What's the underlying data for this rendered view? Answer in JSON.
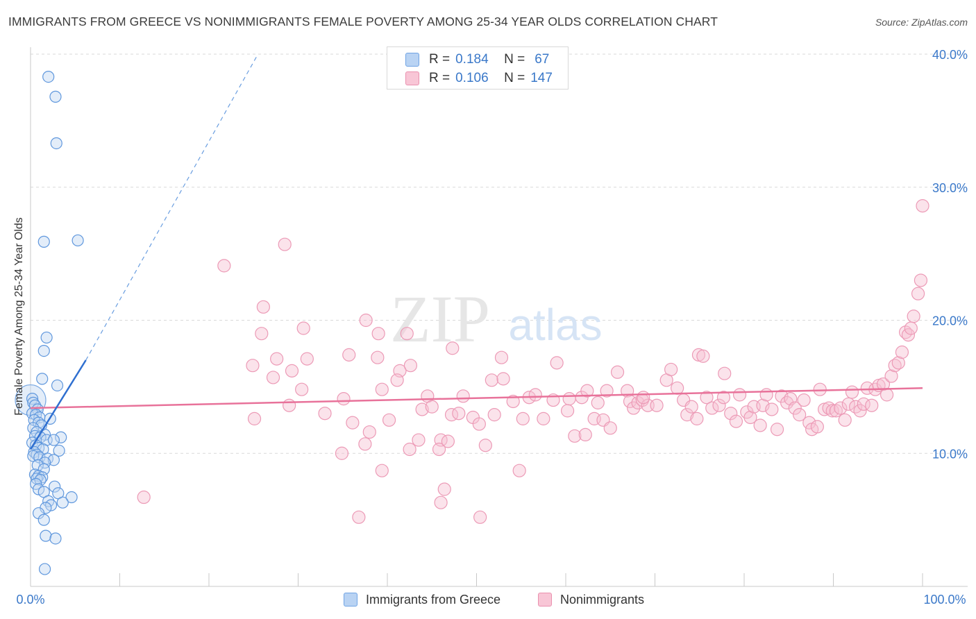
{
  "title": "IMMIGRANTS FROM GREECE VS NONIMMIGRANTS FEMALE POVERTY AMONG 25-34 YEAR OLDS CORRELATION CHART",
  "source": "Source: ZipAtlas.com",
  "watermark": {
    "zip": "ZIP",
    "atlas": "atlas"
  },
  "legend": {
    "r_label": "R =",
    "n_label": "N =",
    "rows": [
      {
        "r": "0.184",
        "n": "67",
        "color": "#6fa3e4",
        "fill": "#b9d3f3"
      },
      {
        "r": "0.106",
        "n": "147",
        "color": "#ea90ae",
        "fill": "#f8c6d6"
      }
    ]
  },
  "colors": {
    "blue": "#3a78c9",
    "blue_line": "#2f6fd0",
    "pink": "#e8729a",
    "pink_fill": "#f7c2d3",
    "blue_fill": "#c2d7f2",
    "grid": "#d9d9d9"
  },
  "chart_data": {
    "type": "scatter",
    "ylabel": "Female Poverty Among 25-34 Year Olds",
    "xlim": [
      0,
      100
    ],
    "ylim": [
      0,
      40
    ],
    "x_tick_labels": [
      "0.0%",
      "100.0%"
    ],
    "y_ticks": [
      10,
      20,
      30,
      40
    ],
    "y_tick_labels": [
      "10.0%",
      "20.0%",
      "30.0%",
      "40.0%"
    ],
    "grid": true,
    "legend_position": "top-center",
    "series": [
      {
        "name": "Immigrants from Greece",
        "r": 0.184,
        "n": 67,
        "trend": {
          "x1": 0,
          "y1": 10.3,
          "x2": 6.2,
          "y2": 17.0,
          "dashed_to": [
            25.5,
            40.0
          ]
        },
        "points": [
          [
            2.0,
            38.3
          ],
          [
            2.8,
            36.8
          ],
          [
            2.9,
            33.3
          ],
          [
            1.5,
            25.9
          ],
          [
            5.3,
            26.0
          ],
          [
            1.8,
            18.7
          ],
          [
            1.5,
            17.7
          ],
          [
            1.3,
            15.6
          ],
          [
            3.0,
            15.1
          ],
          [
            0.2,
            14.1
          ],
          [
            0.3,
            13.8
          ],
          [
            0.5,
            13.6
          ],
          [
            0.8,
            13.3
          ],
          [
            0.2,
            13.0
          ],
          [
            0.6,
            12.9
          ],
          [
            1.0,
            12.7
          ],
          [
            2.2,
            12.6
          ],
          [
            0.4,
            12.5
          ],
          [
            0.9,
            12.3
          ],
          [
            1.2,
            12.1
          ],
          [
            0.3,
            11.9
          ],
          [
            0.7,
            11.6
          ],
          [
            1.6,
            11.4
          ],
          [
            0.5,
            11.3
          ],
          [
            1.1,
            11.2
          ],
          [
            3.4,
            11.2
          ],
          [
            1.8,
            11.0
          ],
          [
            2.6,
            11.0
          ],
          [
            0.2,
            10.8
          ],
          [
            0.6,
            10.6
          ],
          [
            0.9,
            10.4
          ],
          [
            1.4,
            10.3
          ],
          [
            3.2,
            10.2
          ],
          [
            0.4,
            10.1
          ],
          [
            0.7,
            9.9
          ],
          [
            0.3,
            9.8
          ],
          [
            1.0,
            9.7
          ],
          [
            1.9,
            9.6
          ],
          [
            2.6,
            9.5
          ],
          [
            1.6,
            9.3
          ],
          [
            0.8,
            9.1
          ],
          [
            1.5,
            8.8
          ],
          [
            0.5,
            8.4
          ],
          [
            0.9,
            8.3
          ],
          [
            1.3,
            8.2
          ],
          [
            0.7,
            8.1
          ],
          [
            1.1,
            8.0
          ],
          [
            0.6,
            7.7
          ],
          [
            2.7,
            7.5
          ],
          [
            0.9,
            7.3
          ],
          [
            1.5,
            7.1
          ],
          [
            3.1,
            7.0
          ],
          [
            4.6,
            6.7
          ],
          [
            2.0,
            6.4
          ],
          [
            3.6,
            6.3
          ],
          [
            2.3,
            6.1
          ],
          [
            1.7,
            5.9
          ],
          [
            0.9,
            5.5
          ],
          [
            1.5,
            5.0
          ],
          [
            1.7,
            3.8
          ],
          [
            2.8,
            3.6
          ],
          [
            1.6,
            1.3
          ]
        ]
      },
      {
        "name": "Nonimmigrants",
        "r": 0.106,
        "n": 147,
        "trend": {
          "x1": 0,
          "y1": 13.4,
          "x2": 100,
          "y2": 14.9
        },
        "points": [
          [
            12.7,
            6.7
          ],
          [
            21.7,
            24.1
          ],
          [
            28.5,
            25.7
          ],
          [
            26.1,
            21.0
          ],
          [
            25.9,
            19.0
          ],
          [
            30.6,
            19.4
          ],
          [
            37.6,
            20.0
          ],
          [
            39.0,
            19.0
          ],
          [
            42.2,
            19.0
          ],
          [
            47.3,
            17.9
          ],
          [
            24.9,
            16.6
          ],
          [
            27.2,
            15.7
          ],
          [
            27.6,
            17.1
          ],
          [
            29.3,
            16.2
          ],
          [
            31.0,
            17.1
          ],
          [
            35.7,
            17.4
          ],
          [
            38.9,
            17.2
          ],
          [
            41.4,
            16.2
          ],
          [
            42.6,
            16.6
          ],
          [
            39.4,
            14.8
          ],
          [
            41.1,
            15.5
          ],
          [
            30.4,
            14.8
          ],
          [
            35.1,
            14.1
          ],
          [
            25.1,
            12.6
          ],
          [
            29.0,
            13.6
          ],
          [
            33.0,
            13.0
          ],
          [
            36.1,
            12.3
          ],
          [
            38.0,
            11.6
          ],
          [
            37.5,
            10.7
          ],
          [
            34.9,
            10.0
          ],
          [
            39.4,
            8.7
          ],
          [
            40.2,
            12.5
          ],
          [
            42.5,
            10.3
          ],
          [
            43.9,
            13.3
          ],
          [
            44.5,
            14.3
          ],
          [
            43.5,
            11.0
          ],
          [
            45.0,
            13.5
          ],
          [
            46.0,
            11.0
          ],
          [
            47.2,
            12.9
          ],
          [
            45.8,
            10.3
          ],
          [
            46.8,
            10.9
          ],
          [
            48.0,
            13.0
          ],
          [
            48.5,
            14.3
          ],
          [
            49.6,
            12.7
          ],
          [
            50.3,
            12.2
          ],
          [
            51.0,
            10.6
          ],
          [
            52.0,
            12.9
          ],
          [
            51.7,
            15.5
          ],
          [
            52.8,
            17.2
          ],
          [
            53.0,
            15.6
          ],
          [
            54.1,
            13.9
          ],
          [
            54.8,
            8.7
          ],
          [
            50.4,
            5.2
          ],
          [
            46.4,
            7.3
          ],
          [
            46.0,
            6.3
          ],
          [
            36.8,
            5.2
          ],
          [
            55.2,
            12.6
          ],
          [
            55.9,
            14.2
          ],
          [
            56.6,
            14.4
          ],
          [
            57.5,
            12.6
          ],
          [
            58.6,
            14.0
          ],
          [
            59.0,
            16.8
          ],
          [
            60.2,
            13.2
          ],
          [
            60.4,
            14.1
          ],
          [
            61.0,
            11.3
          ],
          [
            61.8,
            14.2
          ],
          [
            62.2,
            11.4
          ],
          [
            62.4,
            14.7
          ],
          [
            63.2,
            12.6
          ],
          [
            63.6,
            13.8
          ],
          [
            64.6,
            14.7
          ],
          [
            64.2,
            12.5
          ],
          [
            65.0,
            11.9
          ],
          [
            65.8,
            16.1
          ],
          [
            66.9,
            14.7
          ],
          [
            67.2,
            13.9
          ],
          [
            67.6,
            13.4
          ],
          [
            68.1,
            13.8
          ],
          [
            68.6,
            14.0
          ],
          [
            69.2,
            13.6
          ],
          [
            68.7,
            14.2
          ],
          [
            70.2,
            13.6
          ],
          [
            71.3,
            15.5
          ],
          [
            71.8,
            16.3
          ],
          [
            72.5,
            14.9
          ],
          [
            73.2,
            14.0
          ],
          [
            73.6,
            12.9
          ],
          [
            74.1,
            13.5
          ],
          [
            74.7,
            12.6
          ],
          [
            74.9,
            17.4
          ],
          [
            75.4,
            17.3
          ],
          [
            75.8,
            14.2
          ],
          [
            76.4,
            13.4
          ],
          [
            77.2,
            13.6
          ],
          [
            77.7,
            14.2
          ],
          [
            77.8,
            16.0
          ],
          [
            78.5,
            13.0
          ],
          [
            79.1,
            12.4
          ],
          [
            79.5,
            14.4
          ],
          [
            80.3,
            13.1
          ],
          [
            80.7,
            12.7
          ],
          [
            81.1,
            13.5
          ],
          [
            81.8,
            12.1
          ],
          [
            82.1,
            13.6
          ],
          [
            82.5,
            14.4
          ],
          [
            83.1,
            13.3
          ],
          [
            83.7,
            11.8
          ],
          [
            84.2,
            14.3
          ],
          [
            84.8,
            13.8
          ],
          [
            85.2,
            14.1
          ],
          [
            85.7,
            13.4
          ],
          [
            86.2,
            12.9
          ],
          [
            86.7,
            14.0
          ],
          [
            87.3,
            12.3
          ],
          [
            87.6,
            11.8
          ],
          [
            88.2,
            12.0
          ],
          [
            88.5,
            14.8
          ],
          [
            89.0,
            13.3
          ],
          [
            89.5,
            13.4
          ],
          [
            89.9,
            13.2
          ],
          [
            90.3,
            13.2
          ],
          [
            90.8,
            13.4
          ],
          [
            91.3,
            12.5
          ],
          [
            91.7,
            13.7
          ],
          [
            92.1,
            14.6
          ],
          [
            92.5,
            13.5
          ],
          [
            93.0,
            13.2
          ],
          [
            93.4,
            13.7
          ],
          [
            93.8,
            14.9
          ],
          [
            94.3,
            13.6
          ],
          [
            94.7,
            14.8
          ],
          [
            95.1,
            15.1
          ],
          [
            95.6,
            15.2
          ],
          [
            96.0,
            14.4
          ],
          [
            96.5,
            15.8
          ],
          [
            96.9,
            16.6
          ],
          [
            97.3,
            16.8
          ],
          [
            97.7,
            17.6
          ],
          [
            98.1,
            19.1
          ],
          [
            98.4,
            18.9
          ],
          [
            98.7,
            19.4
          ],
          [
            99.0,
            20.3
          ],
          [
            99.5,
            22.0
          ],
          [
            99.8,
            23.0
          ],
          [
            100.0,
            28.6
          ]
        ]
      }
    ]
  }
}
